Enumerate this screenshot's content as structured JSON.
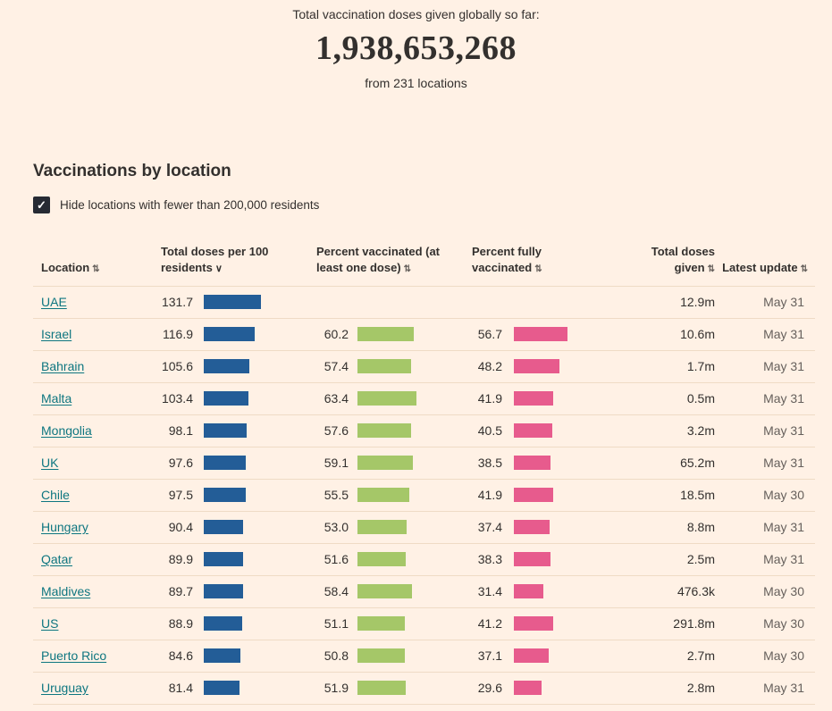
{
  "header": {
    "kicker": "Total vaccination doses given globally so far:",
    "total": "1,938,653,268",
    "subtitle": "from 231 locations"
  },
  "section": {
    "title": "Vaccinations by location",
    "filter": {
      "label": "Hide locations with fewer than 200,000 residents",
      "checked": true,
      "check_glyph": "✓"
    }
  },
  "table": {
    "columns": [
      {
        "label": "Location",
        "icon": "⇅",
        "sort": "none"
      },
      {
        "label": "Total doses per 100 residents",
        "icon": "∨",
        "sort": "descending"
      },
      {
        "label": "Percent vaccinated (at least one dose)",
        "icon": "⇅",
        "sort": "none"
      },
      {
        "label": "Percent fully vaccinated",
        "icon": "⇅",
        "sort": "none"
      },
      {
        "label": "Total doses given",
        "icon": "⇅",
        "sort": "none"
      },
      {
        "label": "Latest update",
        "icon": "⇅",
        "sort": "none"
      }
    ]
  },
  "chart_data": {
    "type": "table",
    "title": "Vaccinations by location",
    "sorted_by": "Total doses per 100 residents",
    "sort_direction": "descending",
    "columns": [
      "Location",
      "Total doses per 100 residents",
      "Percent vaccinated (at least one dose)",
      "Percent fully vaccinated",
      "Total doses given",
      "Latest update"
    ],
    "rows": [
      {
        "location": "UAE",
        "total_doses_per_100": "131.7",
        "percent_vaccinated": "",
        "percent_fully_vaccinated": "",
        "total_doses_given": "12.9m",
        "latest_update": "May 31"
      },
      {
        "location": "Israel",
        "total_doses_per_100": "116.9",
        "percent_vaccinated": "60.2",
        "percent_fully_vaccinated": "56.7",
        "total_doses_given": "10.6m",
        "latest_update": "May 31"
      },
      {
        "location": "Bahrain",
        "total_doses_per_100": "105.6",
        "percent_vaccinated": "57.4",
        "percent_fully_vaccinated": "48.2",
        "total_doses_given": "1.7m",
        "latest_update": "May 31"
      },
      {
        "location": "Malta",
        "total_doses_per_100": "103.4",
        "percent_vaccinated": "63.4",
        "percent_fully_vaccinated": "41.9",
        "total_doses_given": "0.5m",
        "latest_update": "May 31"
      },
      {
        "location": "Mongolia",
        "total_doses_per_100": "98.1",
        "percent_vaccinated": "57.6",
        "percent_fully_vaccinated": "40.5",
        "total_doses_given": "3.2m",
        "latest_update": "May 31"
      },
      {
        "location": "UK",
        "total_doses_per_100": "97.6",
        "percent_vaccinated": "59.1",
        "percent_fully_vaccinated": "38.5",
        "total_doses_given": "65.2m",
        "latest_update": "May 31"
      },
      {
        "location": "Chile",
        "total_doses_per_100": "97.5",
        "percent_vaccinated": "55.5",
        "percent_fully_vaccinated": "41.9",
        "total_doses_given": "18.5m",
        "latest_update": "May 30"
      },
      {
        "location": "Hungary",
        "total_doses_per_100": "90.4",
        "percent_vaccinated": "53.0",
        "percent_fully_vaccinated": "37.4",
        "total_doses_given": "8.8m",
        "latest_update": "May 31"
      },
      {
        "location": "Qatar",
        "total_doses_per_100": "89.9",
        "percent_vaccinated": "51.6",
        "percent_fully_vaccinated": "38.3",
        "total_doses_given": "2.5m",
        "latest_update": "May 31"
      },
      {
        "location": "Maldives",
        "total_doses_per_100": "89.7",
        "percent_vaccinated": "58.4",
        "percent_fully_vaccinated": "31.4",
        "total_doses_given": "476.3k",
        "latest_update": "May 30"
      },
      {
        "location": "US",
        "total_doses_per_100": "88.9",
        "percent_vaccinated": "51.1",
        "percent_fully_vaccinated": "41.2",
        "total_doses_given": "291.8m",
        "latest_update": "May 30"
      },
      {
        "location": "Puerto Rico",
        "total_doses_per_100": "84.6",
        "percent_vaccinated": "50.8",
        "percent_fully_vaccinated": "37.1",
        "total_doses_given": "2.7m",
        "latest_update": "May 30"
      },
      {
        "location": "Uruguay",
        "total_doses_per_100": "81.4",
        "percent_vaccinated": "51.9",
        "percent_fully_vaccinated": "29.6",
        "total_doses_given": "2.8m",
        "latest_update": "May 31"
      }
    ]
  },
  "colors": {
    "background": "#FFF1E5",
    "text": "#33302E",
    "muted_text": "#66605C",
    "link": "#0D7680",
    "bar_blue": "#235D97",
    "bar_green": "#A5C768",
    "bar_pink": "#E75B8D",
    "checkbox": "#262A33",
    "row_divider": "#EFDBC5"
  },
  "bar_scales": {
    "doses_per_100": 0.486,
    "percent": 1.045,
    "percent_fully": 1.06
  }
}
